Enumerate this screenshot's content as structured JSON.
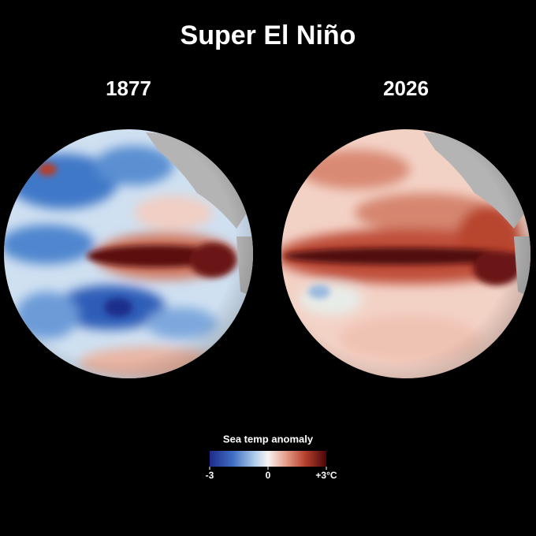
{
  "title": "Super El Niño",
  "panels": [
    {
      "label": "1877"
    },
    {
      "label": "2026"
    }
  ],
  "colorbar": {
    "title": "Sea temp anomaly",
    "range": [
      -3,
      3
    ],
    "ticks": [
      -3,
      0,
      {
        "value": 3,
        "label": "+3°C"
      }
    ]
  }
}
